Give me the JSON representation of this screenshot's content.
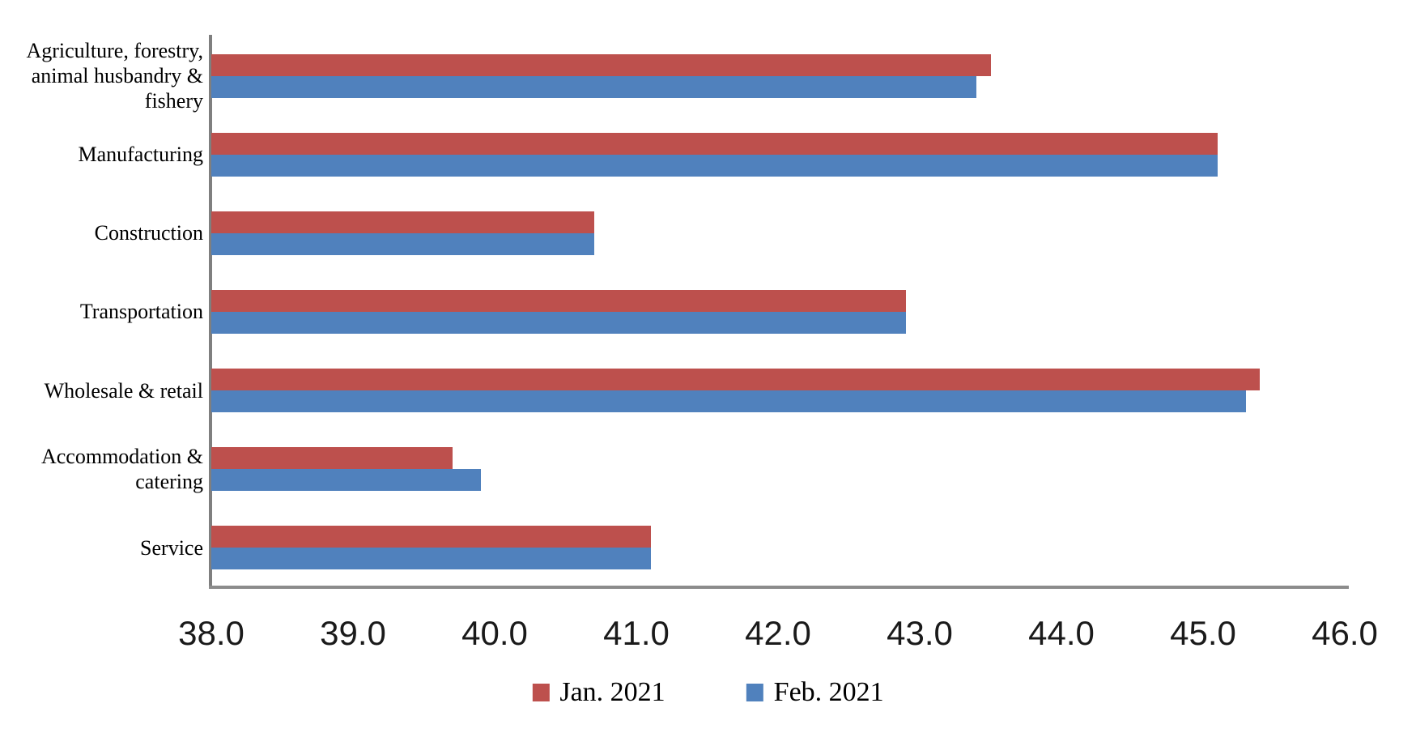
{
  "chart_data": {
    "type": "bar",
    "orientation": "horizontal",
    "title": "",
    "categories": [
      "Agriculture, forestry,\nanimal husbandry &\nfishery",
      "Manufacturing",
      "Construction",
      "Transportation",
      "Wholesale & retail",
      "Accommodation &\ncatering",
      "Service"
    ],
    "series": [
      {
        "name": "Jan. 2021",
        "color": "#BD504D",
        "values": [
          43.5,
          45.1,
          40.7,
          42.9,
          45.4,
          39.7,
          41.1
        ]
      },
      {
        "name": "Feb. 2021",
        "color": "#5081BD",
        "values": [
          43.4,
          45.1,
          40.7,
          42.9,
          45.3,
          39.9,
          41.1
        ]
      }
    ],
    "xlim": [
      38.0,
      46.0
    ],
    "x_ticks": [
      "38.0",
      "39.0",
      "40.0",
      "41.0",
      "42.0",
      "43.0",
      "44.0",
      "45.0",
      "46.0"
    ],
    "grid": false,
    "legend_position": "bottom",
    "axis_color": "#7f7f7f",
    "background_color": "#ffffff"
  }
}
